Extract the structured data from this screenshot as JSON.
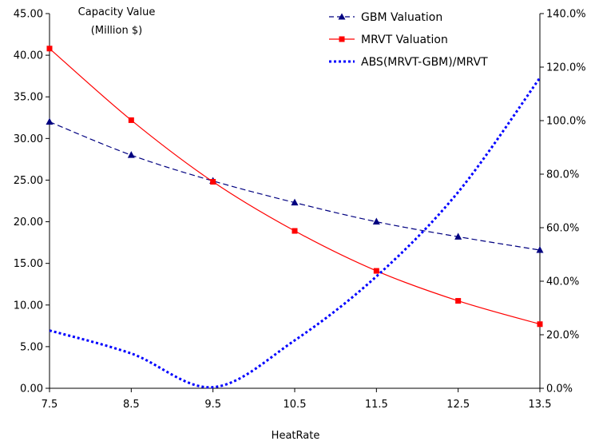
{
  "chart_data": {
    "type": "line",
    "xlabel": "HeatRate",
    "ylabel_line1": "Capacity Value",
    "ylabel_line2": "(Million $)",
    "x": [
      7.5,
      8.5,
      9.5,
      10.5,
      11.5,
      12.5,
      13.5
    ],
    "x_tick_labels": [
      "7.5",
      "8.5",
      "9.5",
      "10.5",
      "11.5",
      "12.5",
      "13.5"
    ],
    "xlim": [
      7.5,
      13.5
    ],
    "ylim_left": [
      0,
      45
    ],
    "left_ticks": [
      0,
      5,
      10,
      15,
      20,
      25,
      30,
      35,
      40,
      45
    ],
    "left_tick_labels": [
      "0.00",
      "5.00",
      "10.00",
      "15.00",
      "20.00",
      "25.00",
      "30.00",
      "35.00",
      "40.00",
      "45.00"
    ],
    "ylim_right": [
      0,
      140
    ],
    "right_ticks": [
      0,
      20,
      40,
      60,
      80,
      100,
      120,
      140
    ],
    "right_tick_labels": [
      "0.0%",
      "20.0%",
      "40.0%",
      "60.0%",
      "80.0%",
      "100.0%",
      "120.0%",
      "140.0%"
    ],
    "grid": false,
    "legend_position": "top-right",
    "series": [
      {
        "name": "GBM Valuation",
        "axis": "left",
        "color": "#000080",
        "marker": "triangle",
        "line_style": "dashed",
        "values": [
          32.0,
          28.0,
          24.9,
          22.3,
          20.0,
          18.2,
          16.6
        ]
      },
      {
        "name": "MRVT Valuation",
        "axis": "left",
        "color": "#ff0000",
        "marker": "square",
        "line_style": "solid",
        "values": [
          40.8,
          32.2,
          24.8,
          18.9,
          14.1,
          10.5,
          7.7
        ]
      },
      {
        "name": "ABS(MRVT-GBM)/MRVT",
        "axis": "right",
        "color": "#0000ff",
        "marker": "none",
        "line_style": "dotted",
        "values": [
          21.6,
          13.0,
          0.4,
          17.9,
          41.8,
          73.3,
          116.0
        ]
      }
    ]
  }
}
